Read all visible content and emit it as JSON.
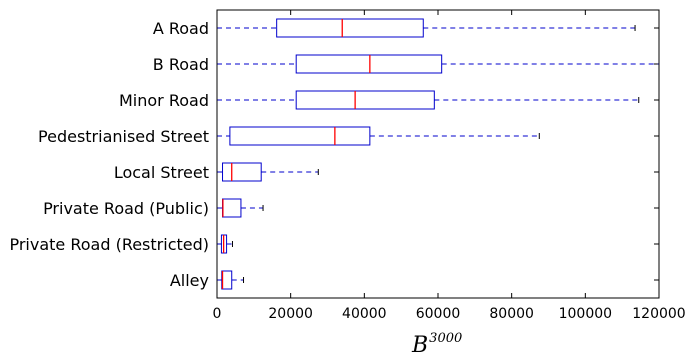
{
  "chart_data": {
    "type": "box",
    "orientation": "horizontal",
    "xlabel": "B",
    "xlabel_superscript": "3000",
    "xlim": [
      0,
      120000
    ],
    "xticks": [
      0,
      20000,
      40000,
      60000,
      80000,
      100000,
      120000
    ],
    "xtick_labels": [
      "0",
      "20000",
      "40000",
      "60000",
      "80000",
      "100000",
      "120000"
    ],
    "categories": [
      "A Road",
      "B Road",
      "Minor Road",
      "Pedestrianised Street",
      "Local Street",
      "Private Road (Public)",
      "Private Road (Restricted)",
      "Alley"
    ],
    "boxes": [
      {
        "whisker_low": 0,
        "q1": 16200,
        "median": 34000,
        "q3": 56000,
        "whisker_high": 113500
      },
      {
        "whisker_low": 0,
        "q1": 21500,
        "median": 41500,
        "q3": 61000,
        "whisker_high": 120000
      },
      {
        "whisker_low": 0,
        "q1": 21500,
        "median": 37500,
        "q3": 59000,
        "whisker_high": 114500
      },
      {
        "whisker_low": 0,
        "q1": 3500,
        "median": 32000,
        "q3": 41500,
        "whisker_high": 87500
      },
      {
        "whisker_low": 0,
        "q1": 1500,
        "median": 4000,
        "q3": 12000,
        "whisker_high": 27500
      },
      {
        "whisker_low": 0,
        "q1": 1500,
        "median": 1600,
        "q3": 6500,
        "whisker_high": 12500
      },
      {
        "whisker_low": 0,
        "q1": 1200,
        "median": 1800,
        "q3": 2600,
        "whisker_high": 4200
      },
      {
        "whisker_low": 0,
        "q1": 1300,
        "median": 1500,
        "q3": 4000,
        "whisker_high": 7200
      }
    ],
    "grid": false,
    "colors": {
      "box": "#0000cc",
      "whisker": "#0000cc",
      "median": "#ff0000",
      "axes": "#000000"
    }
  }
}
